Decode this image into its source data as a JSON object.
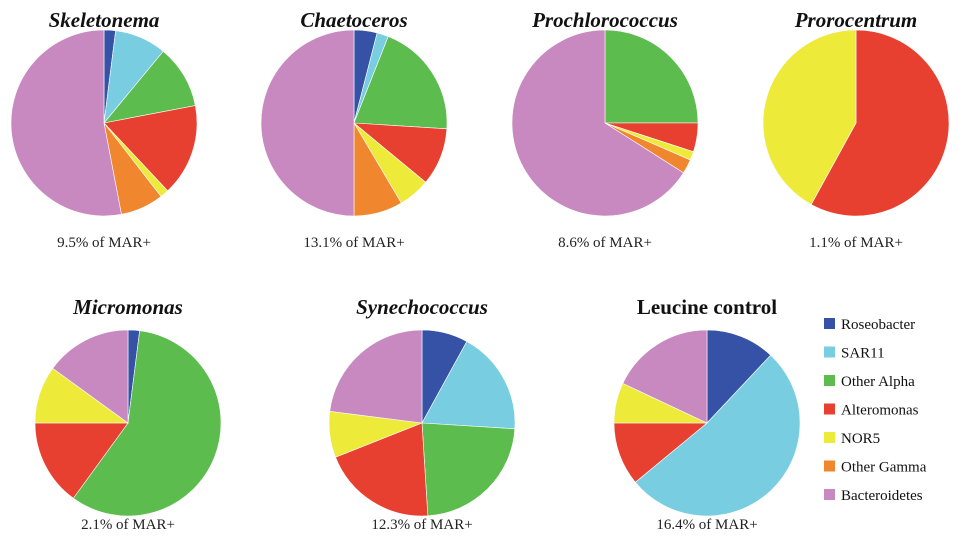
{
  "chart_data": [
    {
      "type": "pie",
      "title": "Skeletonema",
      "italic": true,
      "caption": "9.5% of MAR+",
      "categories": [
        "Roseobacter",
        "SAR11",
        "Other Alpha",
        "Alteromonas",
        "NOR5",
        "Other Gamma",
        "Bacteroidetes"
      ],
      "values": [
        2,
        9,
        11,
        16,
        1.5,
        7.5,
        53
      ]
    },
    {
      "type": "pie",
      "title": "Chaetoceros",
      "italic": true,
      "caption": "13.1% of MAR+",
      "categories": [
        "Roseobacter",
        "SAR11",
        "Other Alpha",
        "Alteromonas",
        "NOR5",
        "Other Gamma",
        "Bacteroidetes"
      ],
      "values": [
        4,
        2,
        20,
        10,
        5.5,
        8.5,
        50
      ]
    },
    {
      "type": "pie",
      "title": "Prochlorococcus",
      "italic": true,
      "caption": "8.6% of MAR+",
      "categories": [
        "Roseobacter",
        "SAR11",
        "Other Alpha",
        "Alteromonas",
        "NOR5",
        "Other Gamma",
        "Bacteroidetes"
      ],
      "values": [
        0,
        0,
        25,
        5,
        1.5,
        2.5,
        66
      ]
    },
    {
      "type": "pie",
      "title": "Prorocentrum",
      "italic": true,
      "caption": "1.1% of MAR+",
      "categories": [
        "Roseobacter",
        "SAR11",
        "Other Alpha",
        "Alteromonas",
        "NOR5",
        "Other Gamma",
        "Bacteroidetes"
      ],
      "values": [
        0,
        0,
        0,
        58,
        42,
        0,
        0
      ]
    },
    {
      "type": "pie",
      "title": "Micromonas",
      "italic": true,
      "caption": "2.1% of MAR+",
      "categories": [
        "Roseobacter",
        "SAR11",
        "Other Alpha",
        "Alteromonas",
        "NOR5",
        "Other Gamma",
        "Bacteroidetes"
      ],
      "values": [
        2,
        0,
        58,
        15,
        10,
        0,
        15
      ]
    },
    {
      "type": "pie",
      "title": "Synechococcus",
      "italic": true,
      "caption": "12.3% of MAR+",
      "categories": [
        "Roseobacter",
        "SAR11",
        "Other Alpha",
        "Alteromonas",
        "NOR5",
        "Other Gamma",
        "Bacteroidetes"
      ],
      "values": [
        8,
        18,
        23,
        20,
        8,
        0,
        23
      ]
    },
    {
      "type": "pie",
      "title": "Leucine control",
      "italic": false,
      "caption": "16.4% of MAR+",
      "categories": [
        "Roseobacter",
        "SAR11",
        "Other Alpha",
        "Alteromonas",
        "NOR5",
        "Other Gamma",
        "Bacteroidetes"
      ],
      "values": [
        12,
        52,
        0,
        11,
        7,
        0,
        18
      ]
    }
  ],
  "legend": {
    "placement": "bottom-right",
    "items": [
      {
        "label": "Roseobacter",
        "color": "#3552a6"
      },
      {
        "label": "SAR11",
        "color": "#78cde0"
      },
      {
        "label": "Other Alpha",
        "color": "#5cbc4e"
      },
      {
        "label": "Alteromonas",
        "color": "#e84030"
      },
      {
        "label": "NOR5",
        "color": "#eeea3a"
      },
      {
        "label": "Other Gamma",
        "color": "#f0862e"
      },
      {
        "label": "Bacteroidetes",
        "color": "#c888c0"
      }
    ]
  }
}
